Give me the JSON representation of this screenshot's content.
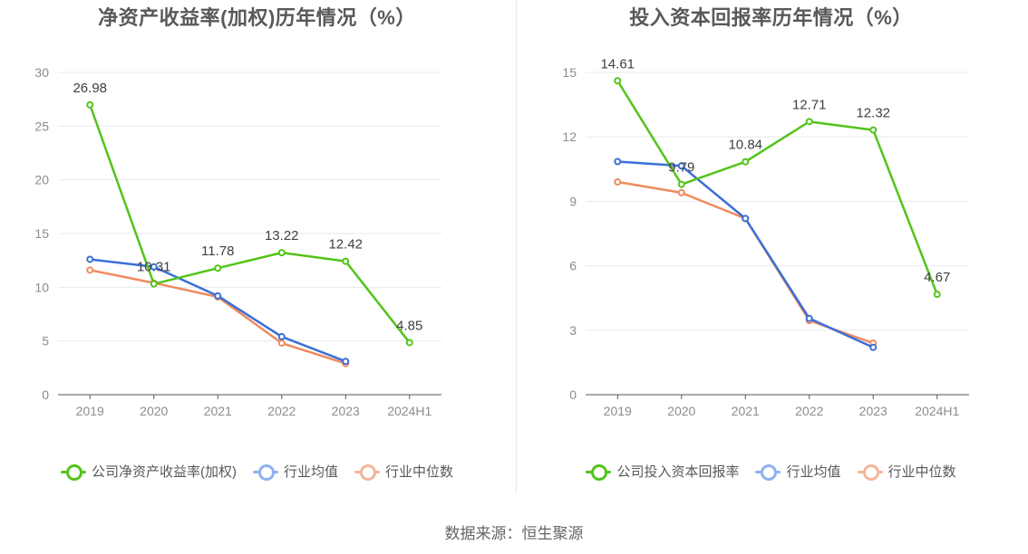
{
  "colors": {
    "company": "#52c41a",
    "industry_avg": "#3a6fd8",
    "industry_median": "#f08a5d",
    "legend_avg": "#8fb0f0",
    "legend_median": "#f6b49a",
    "grid": "#e6e9f0",
    "axis": "#555555"
  },
  "source_text": "数据来源：恒生聚源",
  "chart_data": [
    {
      "type": "line",
      "title": "净资产收益率(加权)历年情况（%）",
      "categories": [
        "2019",
        "2020",
        "2021",
        "2022",
        "2023",
        "2024H1"
      ],
      "ylim": [
        0,
        30
      ],
      "yticks": [
        0,
        5,
        10,
        15,
        20,
        25,
        30
      ],
      "grid": true,
      "legend_position": "bottom",
      "series": [
        {
          "name": "公司净资产收益率(加权)",
          "key": "company",
          "values": [
            26.98,
            10.31,
            11.78,
            13.22,
            12.42,
            4.85
          ],
          "labels": [
            "26.98",
            "10.31",
            "11.78",
            "13.22",
            "12.42",
            "4.85"
          ]
        },
        {
          "name": "行业均值",
          "key": "industry_avg",
          "values": [
            12.6,
            11.9,
            9.2,
            5.4,
            3.1,
            null
          ]
        },
        {
          "name": "行业中位数",
          "key": "industry_median",
          "values": [
            11.6,
            10.4,
            9.1,
            4.8,
            2.9,
            null
          ]
        }
      ]
    },
    {
      "type": "line",
      "title": "投入资本回报率历年情况（%）",
      "categories": [
        "2019",
        "2020",
        "2021",
        "2022",
        "2023",
        "2024H1"
      ],
      "ylim": [
        0,
        15
      ],
      "yticks": [
        0,
        3,
        6,
        9,
        12,
        15
      ],
      "grid": true,
      "legend_position": "bottom",
      "series": [
        {
          "name": "公司投入资本回报率",
          "key": "company",
          "values": [
            14.61,
            9.79,
            10.84,
            12.71,
            12.32,
            4.67
          ],
          "labels": [
            "14.61",
            "9.79",
            "10.84",
            "12.71",
            "12.32",
            "4.67"
          ]
        },
        {
          "name": "行业均值",
          "key": "industry_avg",
          "values": [
            10.85,
            10.65,
            8.2,
            3.55,
            2.2,
            null
          ]
        },
        {
          "name": "行业中位数",
          "key": "industry_median",
          "values": [
            9.9,
            9.4,
            8.2,
            3.45,
            2.4,
            null
          ]
        }
      ]
    }
  ]
}
